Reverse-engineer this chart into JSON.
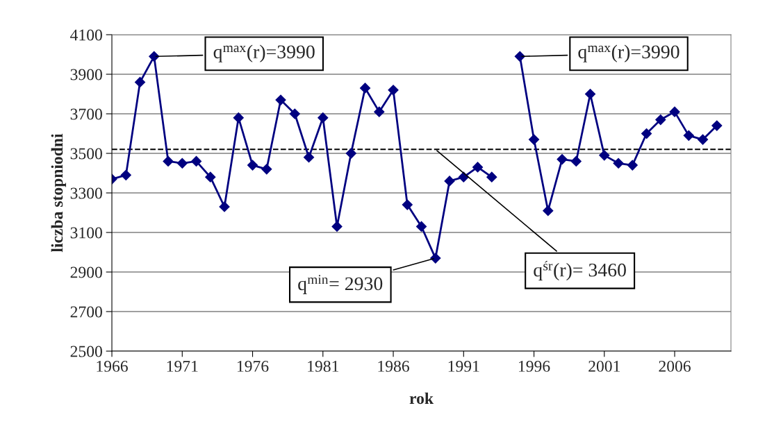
{
  "chart_data": {
    "type": "line",
    "xlabel": "rok",
    "ylabel": "liczba stopniodni",
    "x": [
      1966,
      1967,
      1968,
      1969,
      1970,
      1971,
      1972,
      1973,
      1974,
      1975,
      1976,
      1977,
      1978,
      1979,
      1980,
      1981,
      1982,
      1983,
      1984,
      1985,
      1986,
      1987,
      1988,
      1989,
      1990,
      1991,
      1992,
      1993,
      1994,
      1995,
      1996,
      1997,
      1998,
      1999,
      2000,
      2001,
      2002,
      2003,
      2004,
      2005,
      2006,
      2007,
      2008,
      2009
    ],
    "series": [
      {
        "color": "#000080",
        "values": [
          3370,
          3390,
          3860,
          3990,
          3460,
          3450,
          3460,
          3380,
          3230,
          3680,
          3440,
          3420,
          3770,
          3700,
          3480,
          3680,
          3130,
          3500,
          3830,
          3710,
          3820,
          3240,
          3130,
          2970,
          3360,
          3380,
          3430,
          3380,
          null,
          3990,
          3570,
          3210,
          3470,
          3460,
          3800,
          3490,
          3450,
          3440,
          3600,
          3670,
          3710,
          3590,
          3570,
          3640
        ]
      }
    ],
    "xlim": [
      1966,
      2010
    ],
    "xticks": [
      1966,
      1971,
      1976,
      1981,
      1986,
      1991,
      1996,
      2001,
      2006
    ],
    "ylim": [
      2500,
      4100
    ],
    "yticks": [
      2500,
      2700,
      2900,
      3100,
      3300,
      3500,
      3700,
      3900,
      4100
    ],
    "grid": "y",
    "marker": "diamond",
    "line_style": "solid",
    "legend": false,
    "ref_lines": [
      {
        "axis": "y",
        "value": 3520,
        "color": "#000000",
        "line_style": "dashed"
      }
    ],
    "annotations": [
      {
        "text": "q$^{max}$(r)=3990",
        "x": 1969,
        "y": 3990
      },
      {
        "text": "q$^{max}$(r)=3990",
        "x": 1995,
        "y": 3990
      },
      {
        "text": "q$^{min}$= 2930",
        "x": 1989,
        "y": 2970
      },
      {
        "text": "q$^{śr}$(r)= 3460",
        "x": 1989,
        "y": 3520
      }
    ]
  }
}
